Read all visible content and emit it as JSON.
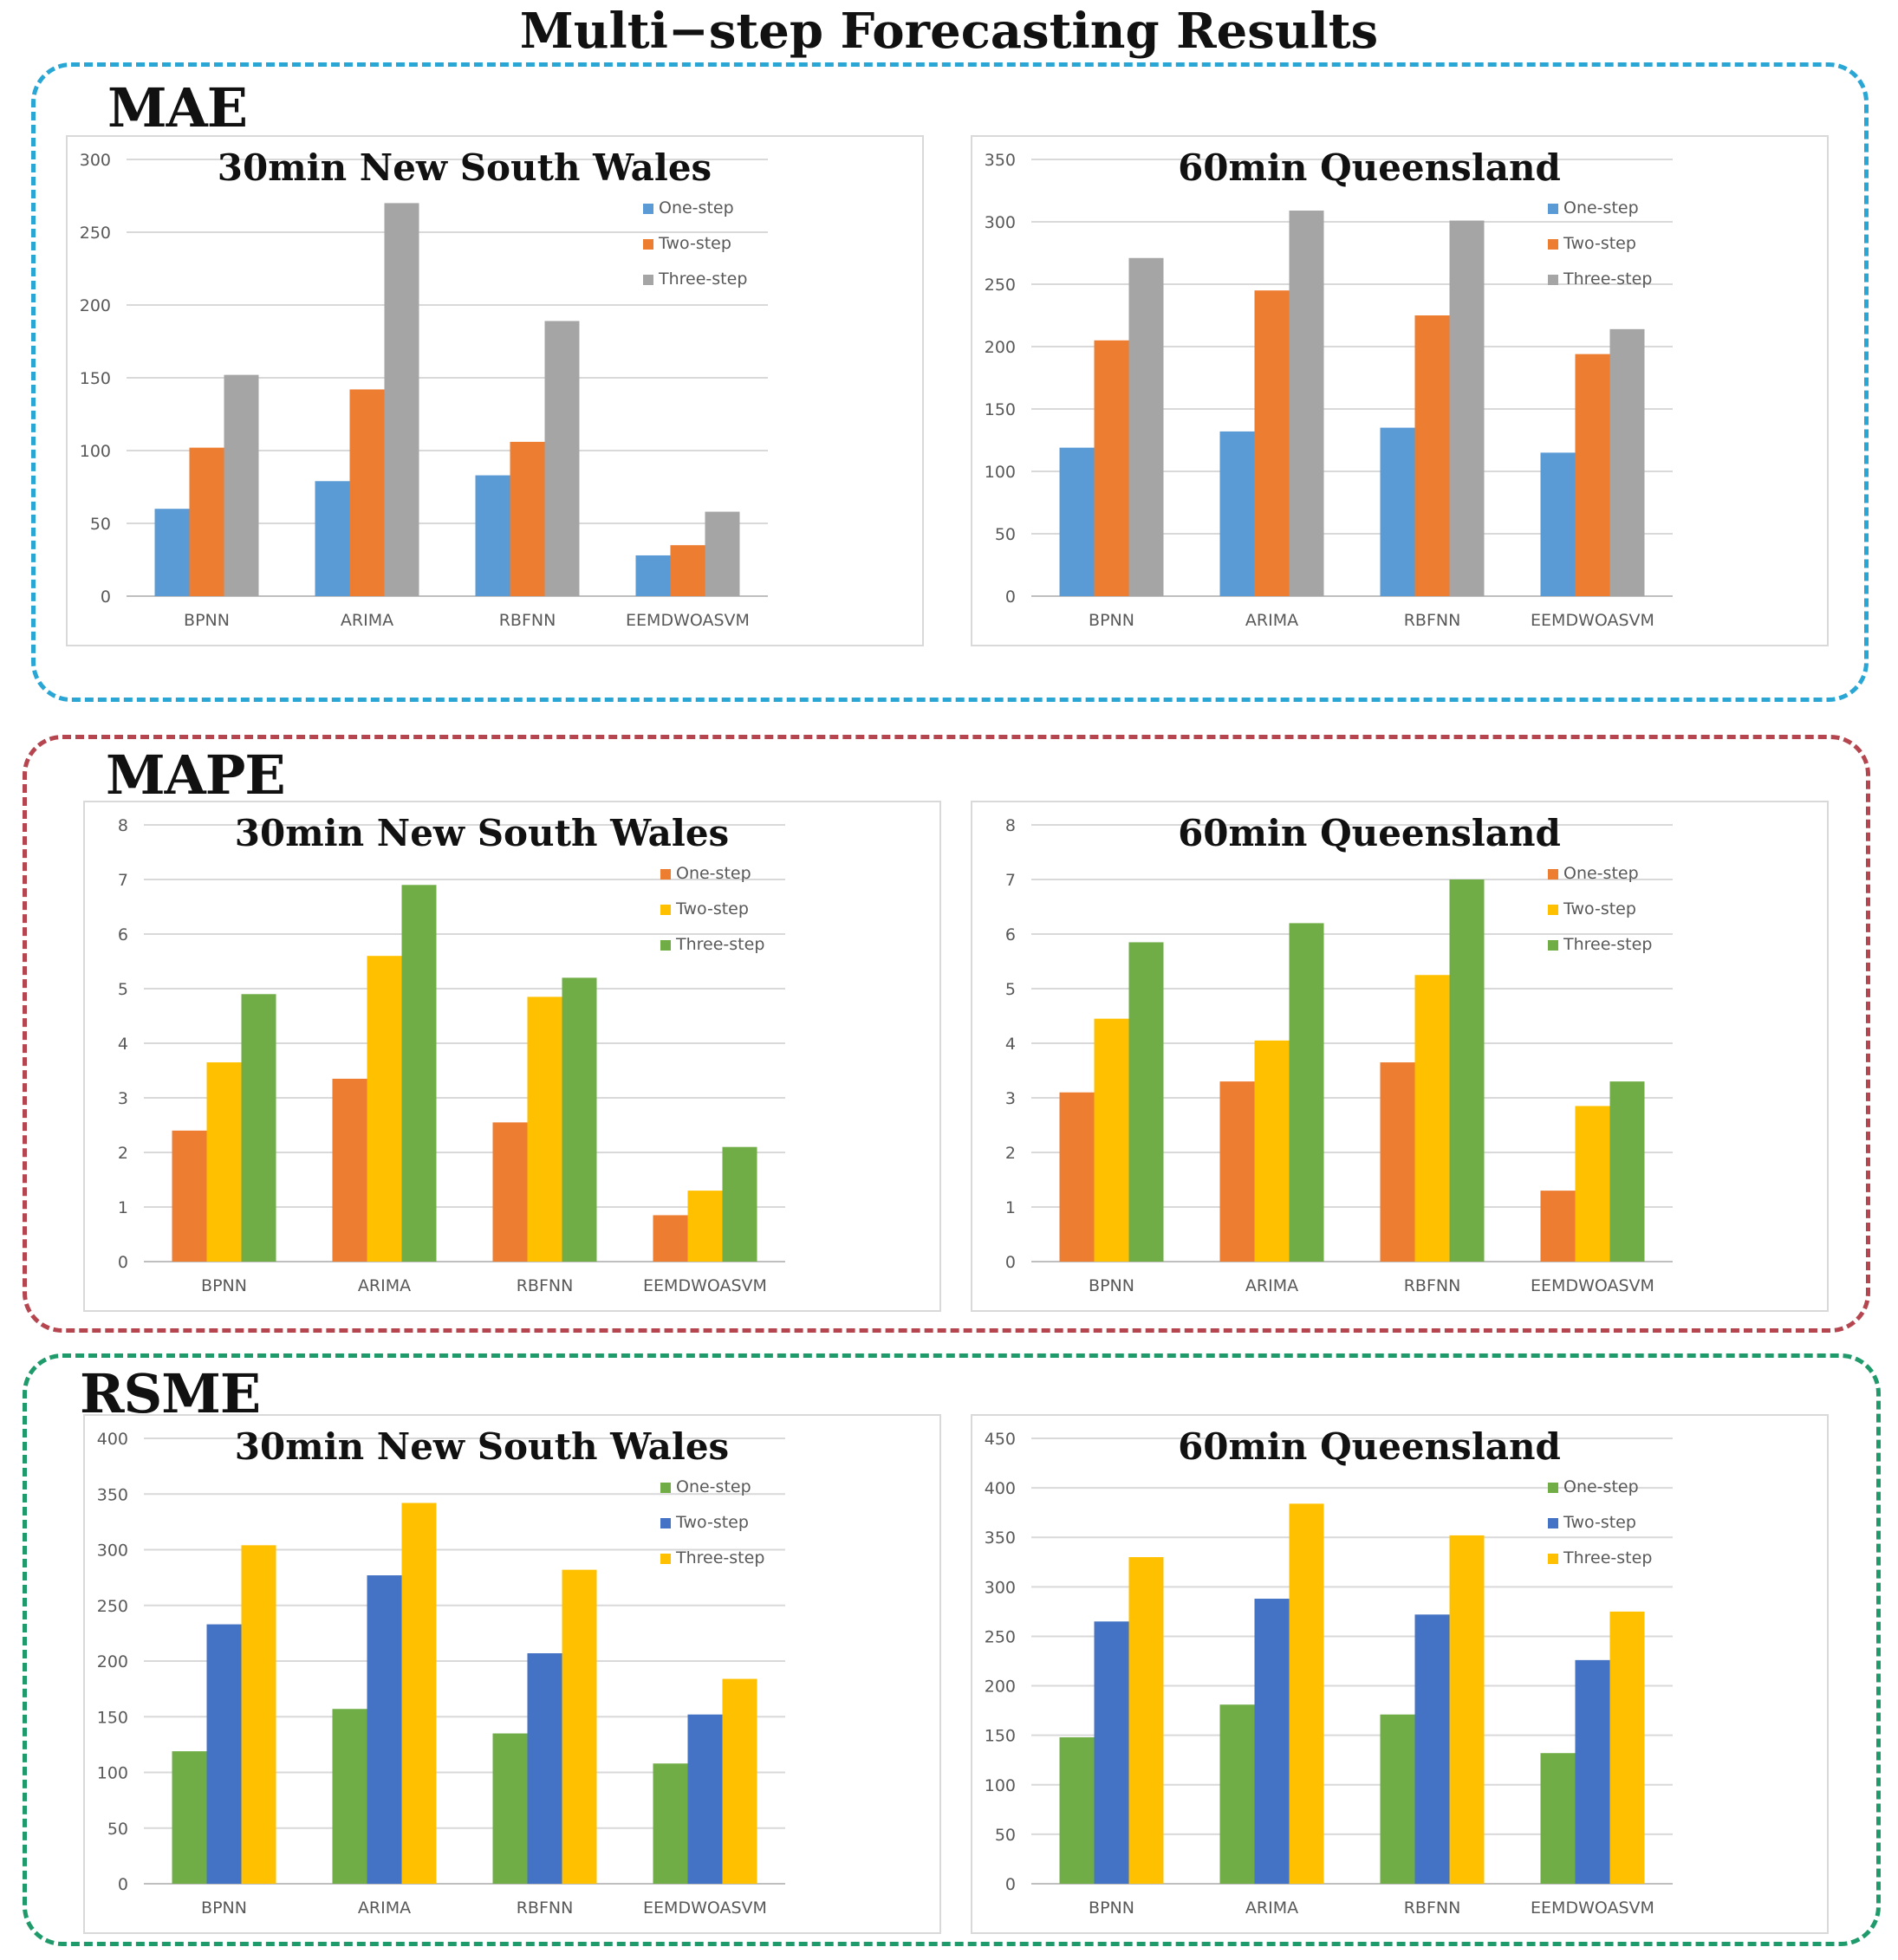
{
  "title": "Multi−step Forecasting Results",
  "groups": [
    {
      "label": "MAE",
      "color": "#2aa6d4"
    },
    {
      "label": "MAPE",
      "color": "#b5454e"
    },
    {
      "label": "RSME",
      "color": "#1f9a6a"
    }
  ],
  "chart_data": [
    {
      "type": "bar",
      "group": "MAE",
      "title": "30min New South Wales",
      "categories": [
        "BPNN",
        "ARIMA",
        "RBFNN",
        "EEMDWOASVM"
      ],
      "ylim": [
        0,
        300
      ],
      "yticks": [
        0,
        50,
        100,
        150,
        200,
        250,
        300
      ],
      "grid": true,
      "legend": "top-right",
      "series": [
        {
          "name": "One-step",
          "color": "#5b9bd5",
          "values": [
            60,
            79,
            83,
            28
          ]
        },
        {
          "name": "Two-step",
          "color": "#ed7d31",
          "values": [
            102,
            142,
            106,
            35
          ]
        },
        {
          "name": "Three-step",
          "color": "#a5a5a5",
          "values": [
            152,
            270,
            189,
            58
          ]
        }
      ]
    },
    {
      "type": "bar",
      "group": "MAE",
      "title": "60min Queensland",
      "categories": [
        "BPNN",
        "ARIMA",
        "RBFNN",
        "EEMDWOASVM"
      ],
      "ylim": [
        0,
        350
      ],
      "yticks": [
        0,
        50,
        100,
        150,
        200,
        250,
        300,
        350
      ],
      "grid": true,
      "legend": "top-right",
      "series": [
        {
          "name": "One-step",
          "color": "#5b9bd5",
          "values": [
            119,
            132,
            135,
            115
          ]
        },
        {
          "name": "Two-step",
          "color": "#ed7d31",
          "values": [
            205,
            245,
            225,
            194
          ]
        },
        {
          "name": "Three-step",
          "color": "#a5a5a5",
          "values": [
            271,
            309,
            301,
            214
          ]
        }
      ]
    },
    {
      "type": "bar",
      "group": "MAPE",
      "title": "30min New South Wales",
      "categories": [
        "BPNN",
        "ARIMA",
        "RBFNN",
        "EEMDWOASVM"
      ],
      "ylim": [
        0,
        8
      ],
      "yticks": [
        0,
        1,
        2,
        3,
        4,
        5,
        6,
        7,
        8
      ],
      "grid": true,
      "legend": "top-right",
      "series": [
        {
          "name": "One-step",
          "color": "#ed7d31",
          "values": [
            2.4,
            3.35,
            2.55,
            0.85
          ]
        },
        {
          "name": "Two-step",
          "color": "#ffc000",
          "values": [
            3.65,
            5.6,
            4.85,
            1.3
          ]
        },
        {
          "name": "Three-step",
          "color": "#70ad47",
          "values": [
            4.9,
            6.9,
            5.2,
            2.1
          ]
        }
      ]
    },
    {
      "type": "bar",
      "group": "MAPE",
      "title": "60min Queensland",
      "categories": [
        "BPNN",
        "ARIMA",
        "RBFNN",
        "EEMDWOASVM"
      ],
      "ylim": [
        0,
        8
      ],
      "yticks": [
        0,
        1,
        2,
        3,
        4,
        5,
        6,
        7,
        8
      ],
      "grid": true,
      "legend": "top-right",
      "series": [
        {
          "name": "One-step",
          "color": "#ed7d31",
          "values": [
            3.1,
            3.3,
            3.65,
            1.3
          ]
        },
        {
          "name": "Two-step",
          "color": "#ffc000",
          "values": [
            4.45,
            4.05,
            5.25,
            2.85
          ]
        },
        {
          "name": "Three-step",
          "color": "#70ad47",
          "values": [
            5.85,
            6.2,
            7.0,
            3.3
          ]
        }
      ]
    },
    {
      "type": "bar",
      "group": "RSME",
      "title": "30min New South Wales",
      "categories": [
        "BPNN",
        "ARIMA",
        "RBFNN",
        "EEMDWOASVM"
      ],
      "ylim": [
        0,
        400
      ],
      "yticks": [
        0,
        50,
        100,
        150,
        200,
        250,
        300,
        350,
        400
      ],
      "grid": true,
      "legend": "top-right",
      "series": [
        {
          "name": "One-step",
          "color": "#70ad47",
          "values": [
            119,
            157,
            135,
            108
          ]
        },
        {
          "name": "Two-step",
          "color": "#4472c4",
          "values": [
            233,
            277,
            207,
            152
          ]
        },
        {
          "name": "Three-step",
          "color": "#ffc000",
          "values": [
            304,
            342,
            282,
            184
          ]
        }
      ]
    },
    {
      "type": "bar",
      "group": "RSME",
      "title": "60min Queensland",
      "categories": [
        "BPNN",
        "ARIMA",
        "RBFNN",
        "EEMDWOASVM"
      ],
      "ylim": [
        0,
        450
      ],
      "yticks": [
        0,
        50,
        100,
        150,
        200,
        250,
        300,
        350,
        400,
        450
      ],
      "grid": true,
      "legend": "top-right",
      "series": [
        {
          "name": "One-step",
          "color": "#70ad47",
          "values": [
            148,
            181,
            171,
            132
          ]
        },
        {
          "name": "Two-step",
          "color": "#4472c4",
          "values": [
            265,
            288,
            272,
            226
          ]
        },
        {
          "name": "Three-step",
          "color": "#ffc000",
          "values": [
            330,
            384,
            352,
            275
          ]
        }
      ]
    }
  ]
}
